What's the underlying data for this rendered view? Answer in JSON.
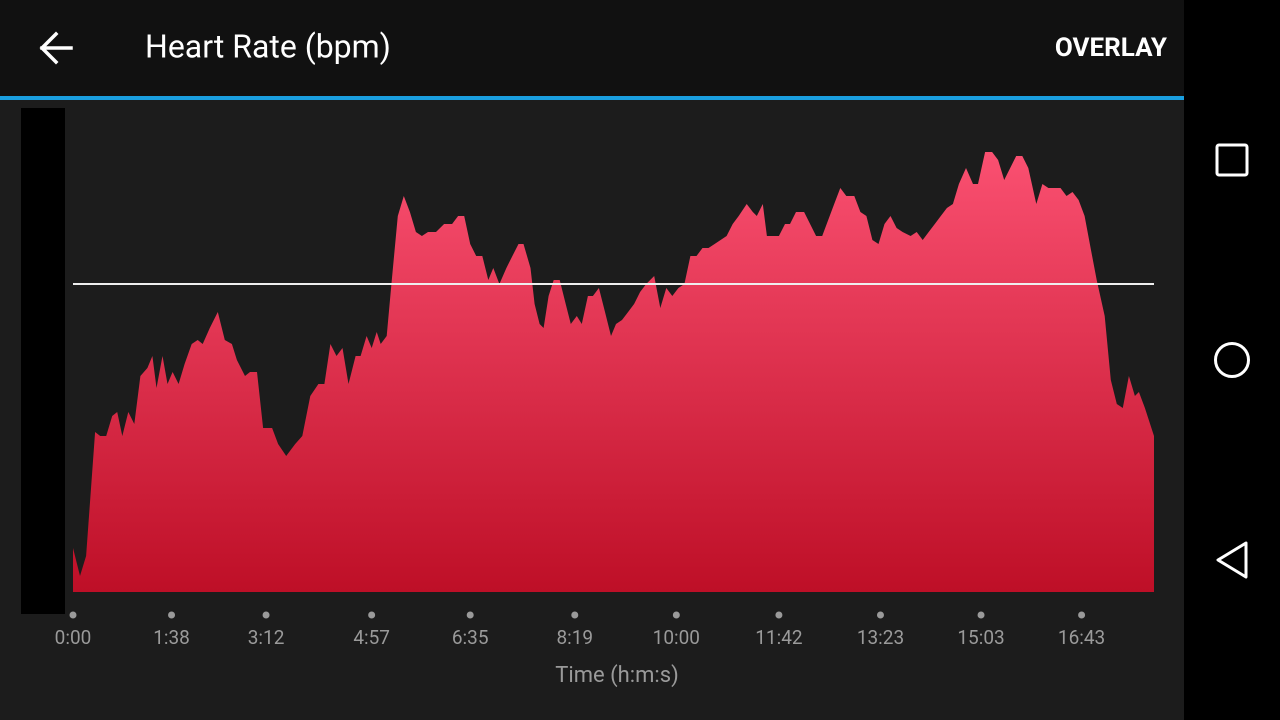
{
  "toolbar": {
    "action": "OVERLAY"
  },
  "chart_data": {
    "type": "area",
    "title": "Heart Rate (bpm)",
    "x_label": "Time (h:m:s)",
    "colors": [
      "#fa5071",
      "#be0f27"
    ],
    "average_line": 136,
    "xlim": [
      0,
      1075
    ],
    "ylim": [
      59,
      180
    ],
    "xticks": [
      {
        "value": 0,
        "label": "0:00"
      },
      {
        "value": 98,
        "label": "1:38"
      },
      {
        "value": 192,
        "label": "3:12"
      },
      {
        "value": 297,
        "label": "4:57"
      },
      {
        "value": 395,
        "label": "6:35"
      },
      {
        "value": 499,
        "label": "8:19"
      },
      {
        "value": 600,
        "label": "10:00"
      },
      {
        "value": 702,
        "label": "11:42"
      },
      {
        "value": 803,
        "label": "13:23"
      },
      {
        "value": 903,
        "label": "15:03"
      },
      {
        "value": 1003,
        "label": "16:43"
      }
    ],
    "x": [
      0,
      7,
      13,
      22,
      27,
      33,
      39,
      44,
      49,
      55,
      61,
      67,
      74,
      79,
      83,
      89,
      94,
      99,
      105,
      111,
      118,
      124,
      129,
      136,
      144,
      151,
      158,
      163,
      171,
      176,
      183,
      189,
      198,
      204,
      212,
      221,
      228,
      236,
      244,
      250,
      256,
      262,
      268,
      274,
      281,
      286,
      292,
      297,
      302,
      306,
      312,
      317,
      323,
      329,
      335,
      341,
      347,
      353,
      361,
      369,
      377,
      383,
      389,
      395,
      401,
      407,
      413,
      418,
      424,
      431,
      437,
      443,
      448,
      455,
      459,
      464,
      468,
      473,
      478,
      484,
      490,
      495,
      501,
      506,
      512,
      517,
      523,
      529,
      535,
      540,
      546,
      552,
      558,
      564,
      570,
      578,
      584,
      590,
      596,
      602,
      608,
      614,
      620,
      626,
      632,
      638,
      644,
      650,
      656,
      662,
      670,
      676,
      680,
      686,
      690,
      698,
      702,
      708,
      713,
      719,
      727,
      733,
      739,
      745,
      751,
      757,
      763,
      769,
      777,
      783,
      789,
      795,
      801,
      807,
      813,
      819,
      825,
      833,
      839,
      845,
      851,
      857,
      863,
      869,
      875,
      881,
      888,
      895,
      900,
      907,
      914,
      920,
      926,
      932,
      938,
      944,
      950,
      958,
      964,
      970,
      976,
      982,
      988,
      994,
      1000,
      1006,
      1012,
      1018,
      1026,
      1032,
      1038,
      1044,
      1050,
      1056,
      1060,
      1066,
      1075
    ],
    "values": [
      70,
      63,
      68,
      99,
      98,
      98,
      103,
      104,
      98,
      104,
      101,
      113,
      115,
      118,
      110,
      118,
      111,
      114,
      111,
      116,
      121,
      122,
      121,
      125,
      129,
      122,
      121,
      117,
      113,
      114,
      114,
      100,
      100,
      96,
      93,
      96,
      98,
      108,
      111,
      111,
      121,
      118,
      120,
      111,
      118,
      118,
      123,
      120,
      124,
      121,
      123,
      137,
      153,
      158,
      154,
      149,
      148,
      149,
      149,
      151,
      151,
      153,
      153,
      146,
      143,
      143,
      137,
      140,
      136,
      140,
      143,
      146,
      146,
      140,
      131,
      126,
      125,
      133,
      137,
      137,
      131,
      126,
      128,
      126,
      133,
      133,
      135,
      129,
      123,
      126,
      127,
      129,
      131,
      134,
      136,
      138,
      130,
      135,
      133,
      135,
      136,
      143,
      143,
      145,
      145,
      146,
      147,
      148,
      151,
      153,
      156,
      154,
      153,
      156,
      148,
      148,
      148,
      151,
      151,
      154,
      154,
      151,
      148,
      148,
      152,
      156,
      160,
      158,
      158,
      154,
      153,
      147,
      146,
      151,
      153,
      150,
      149,
      148,
      149,
      147,
      149,
      151,
      153,
      155,
      156,
      161,
      165,
      161,
      161,
      169,
      169,
      167,
      162,
      165,
      168,
      168,
      165,
      156,
      161,
      160,
      160,
      160,
      158,
      159,
      157,
      153,
      145,
      137,
      128,
      112,
      106,
      105,
      113,
      108,
      109,
      105,
      98
    ]
  }
}
